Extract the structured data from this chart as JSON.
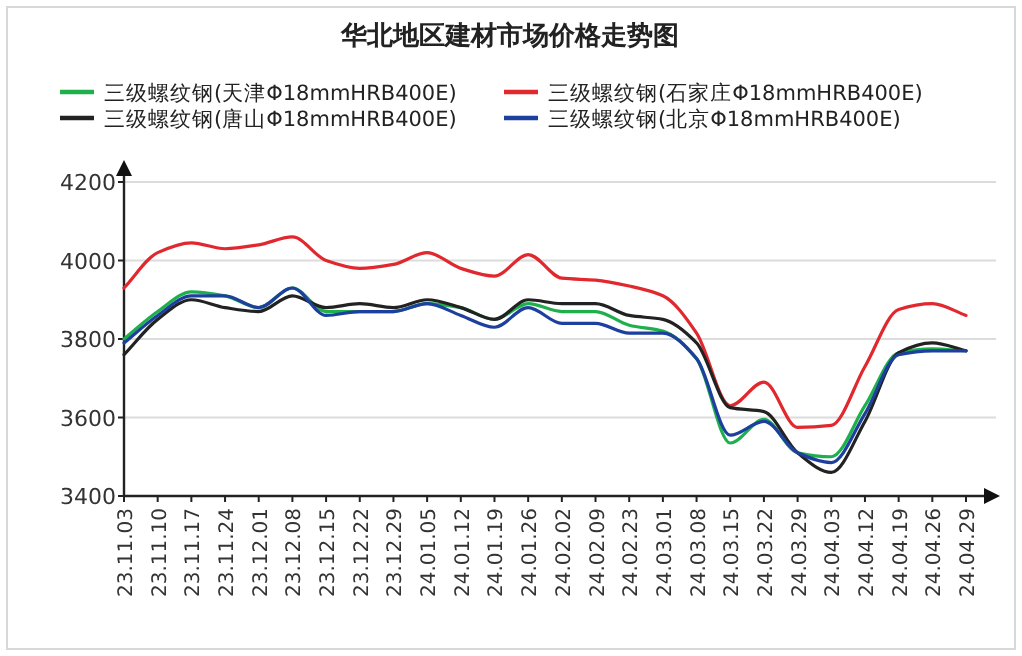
{
  "chart_data": {
    "type": "line",
    "title": "华北地区建材市场价格走势图",
    "categories": [
      "23.11.03",
      "23.11.10",
      "23.11.17",
      "23.11.24",
      "23.12.01",
      "23.12.08",
      "23.12.15",
      "23.12.22",
      "23.12.29",
      "24.01.05",
      "24.01.12",
      "24.01.19",
      "24.01.26",
      "24.02.02",
      "24.02.09",
      "24.02.23",
      "24.03.01",
      "24.03.08",
      "24.03.15",
      "24.03.22",
      "24.03.29",
      "24.04.03",
      "24.04.12",
      "24.04.19",
      "24.04.26",
      "24.04.29"
    ],
    "series": [
      {
        "name": "三级螺纹钢(天津Φ18mmHRB400E)",
        "color": "#1db04b",
        "values": [
          3800,
          3870,
          3920,
          3910,
          3880,
          3930,
          3870,
          3870,
          3870,
          3890,
          3880,
          3850,
          3890,
          3870,
          3870,
          3835,
          3820,
          3750,
          3535,
          3595,
          3510,
          3500,
          3630,
          3765,
          3775,
          3770
        ]
      },
      {
        "name": "三级螺纹钢(石家庄Φ18mmHRB400E)",
        "color": "#e0282e",
        "values": [
          3930,
          4020,
          4045,
          4030,
          4040,
          4060,
          4000,
          3980,
          3990,
          4020,
          3980,
          3960,
          4015,
          3955,
          3950,
          3935,
          3910,
          3815,
          3630,
          3690,
          3575,
          3580,
          3730,
          3875,
          3890,
          3860
        ]
      },
      {
        "name": "三级螺纹钢(唐山Φ18mmHRB400E)",
        "color": "#222222",
        "values": [
          3760,
          3850,
          3900,
          3880,
          3870,
          3910,
          3880,
          3890,
          3880,
          3900,
          3880,
          3850,
          3900,
          3890,
          3890,
          3860,
          3850,
          3790,
          3625,
          3615,
          3510,
          3460,
          3590,
          3765,
          3790,
          3770
        ]
      },
      {
        "name": "三级螺纹钢(北京Φ18mmHRB400E)",
        "color": "#1d3f9e",
        "values": [
          3790,
          3860,
          3910,
          3910,
          3880,
          3930,
          3860,
          3870,
          3870,
          3890,
          3860,
          3830,
          3880,
          3840,
          3840,
          3815,
          3815,
          3750,
          3555,
          3590,
          3510,
          3485,
          3610,
          3760,
          3770,
          3770
        ]
      }
    ],
    "ylim": [
      3400,
      4200
    ],
    "yticks": [
      3400,
      3600,
      3800,
      4000,
      4200
    ],
    "grid": "y",
    "legend": "top",
    "line_style": "solid",
    "marker": "none"
  }
}
